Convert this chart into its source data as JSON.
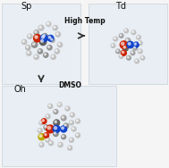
{
  "bg_color": "#f5f5f5",
  "panel_bg": "#e8eef4",
  "panel_edge": "#c8d0d8",
  "title_sp": "Sp",
  "title_td": "Td",
  "title_oh": "Oh",
  "arrow_h_text": "High Temp",
  "arrow_v_text": "DMSO",
  "text_color": "#111111",
  "arrow_color": "#333333",
  "c_dark": "#404040",
  "c_mid": "#707070",
  "c_light": "#a0a0a0",
  "c_lighter": "#c0c0c0",
  "c_white": "#d8d8d8",
  "c_red": "#cc2200",
  "c_blue": "#1144cc",
  "c_yellow": "#bbaa00",
  "sp_atoms": [
    [
      0,
      16,
      2.8,
      "#c0c0c0"
    ],
    [
      8,
      20,
      2.5,
      "#c8c8c8"
    ],
    [
      15,
      16,
      2.5,
      "#c0c0c0"
    ],
    [
      18,
      9,
      2.5,
      "#c0c0c0"
    ],
    [
      12,
      3,
      2.5,
      "#b0b0b0"
    ],
    [
      4,
      7,
      3.0,
      "#909090"
    ],
    [
      -5,
      11,
      2.5,
      "#a0a0a0"
    ],
    [
      -12,
      7,
      2.5,
      "#c0c0c0"
    ],
    [
      -18,
      1,
      2.5,
      "#c0c0c0"
    ],
    [
      -14,
      -5,
      2.5,
      "#b8b8b8"
    ],
    [
      -7,
      -2,
      3.0,
      "#909090"
    ],
    [
      2,
      1,
      3.5,
      "#606060"
    ],
    [
      -1,
      -9,
      2.5,
      "#909090"
    ],
    [
      9,
      -5,
      2.5,
      "#909090"
    ],
    [
      17,
      -9,
      2.5,
      "#c0c0c0"
    ],
    [
      20,
      -2,
      2.5,
      "#c0c0c0"
    ],
    [
      13,
      -15,
      2.5,
      "#c0c0c0"
    ],
    [
      5,
      -13,
      2.5,
      "#909090"
    ],
    [
      -5,
      -15,
      2.5,
      "#c0c0c0"
    ],
    [
      -13,
      -11,
      2.5,
      "#c0c0c0"
    ],
    [
      -4,
      5,
      4.0,
      "#cc2200"
    ],
    [
      3,
      5,
      3.8,
      "#1144cc"
    ],
    [
      10,
      5,
      3.2,
      "#1144cc"
    ]
  ],
  "td_atoms": [
    [
      -2,
      18,
      2.5,
      "#c0c0c0"
    ],
    [
      7,
      16,
      2.5,
      "#c0c0c0"
    ],
    [
      13,
      10,
      2.5,
      "#c0c0c0"
    ],
    [
      15,
      3,
      2.5,
      "#c0c0c0"
    ],
    [
      9,
      -3,
      2.5,
      "#a0a0a0"
    ],
    [
      0,
      6,
      3.0,
      "#a0a0a0"
    ],
    [
      -8,
      12,
      2.5,
      "#a0a0a0"
    ],
    [
      -15,
      8,
      2.5,
      "#c0c0c0"
    ],
    [
      -18,
      0,
      2.5,
      "#c0c0c0"
    ],
    [
      -12,
      -7,
      2.5,
      "#a0a0a0"
    ],
    [
      -3,
      -3,
      3.5,
      "#606060"
    ],
    [
      6,
      -9,
      2.5,
      "#a0a0a0"
    ],
    [
      15,
      -7,
      2.5,
      "#c0c0c0"
    ],
    [
      18,
      -15,
      2.5,
      "#c0c0c0"
    ],
    [
      11,
      -19,
      2.5,
      "#c0c0c0"
    ],
    [
      1,
      -15,
      2.5,
      "#a0a0a0"
    ],
    [
      -8,
      -13,
      2.5,
      "#c0c0c0"
    ],
    [
      -5,
      1,
      4.5,
      "#cc2200"
    ],
    [
      3,
      1,
      4.0,
      "#1144cc"
    ],
    [
      10,
      1,
      3.2,
      "#1144cc"
    ],
    [
      -5,
      -9,
      3.2,
      "#cc2200"
    ]
  ],
  "oh_atoms": [
    [
      -10,
      24,
      2.8,
      "#c0c0c0"
    ],
    [
      2,
      26,
      2.8,
      "#c8c8c8"
    ],
    [
      12,
      21,
      2.8,
      "#c0c0c0"
    ],
    [
      18,
      13,
      2.8,
      "#c0c0c0"
    ],
    [
      17,
      3,
      2.8,
      "#c0c0c0"
    ],
    [
      7,
      9,
      3.2,
      "#a0a0a0"
    ],
    [
      -3,
      17,
      2.8,
      "#a0a0a0"
    ],
    [
      -13,
      11,
      2.8,
      "#c0c0c0"
    ],
    [
      -21,
      3,
      2.8,
      "#c0c0c0"
    ],
    [
      -23,
      -7,
      2.8,
      "#c0c0c0"
    ],
    [
      -15,
      -3,
      3.2,
      "#909090"
    ],
    [
      -2,
      3,
      3.8,
      "#606060"
    ],
    [
      10,
      -1,
      3.2,
      "#909090"
    ],
    [
      20,
      -5,
      2.8,
      "#c0c0c0"
    ],
    [
      25,
      -13,
      2.8,
      "#c0c0c0"
    ],
    [
      17,
      -19,
      2.8,
      "#c0c0c0"
    ],
    [
      7,
      -15,
      2.8,
      "#909090"
    ],
    [
      -3,
      -11,
      3.2,
      "#909090"
    ],
    [
      -13,
      -19,
      2.8,
      "#c0c0c0"
    ],
    [
      -21,
      -25,
      2.8,
      "#c0c0c0"
    ],
    [
      -9,
      -23,
      2.8,
      "#c0c0c0"
    ],
    [
      3,
      -25,
      2.8,
      "#c0c0c0"
    ],
    [
      15,
      -29,
      2.8,
      "#c0c0c0"
    ],
    [
      25,
      5,
      2.8,
      "#c0c0c0"
    ],
    [
      -18,
      5,
      3.2,
      "#cc2200"
    ],
    [
      -10,
      -5,
      5.0,
      "#cc2200"
    ],
    [
      -2,
      -5,
      4.5,
      "#1144cc"
    ],
    [
      7,
      -5,
      4.0,
      "#1144cc"
    ],
    [
      -21,
      -15,
      4.0,
      "#bbaa00"
    ],
    [
      -15,
      -13,
      3.2,
      "#cc2200"
    ]
  ]
}
